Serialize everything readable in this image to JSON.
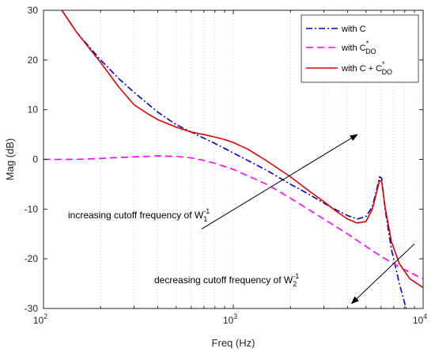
{
  "chart_data": {
    "type": "line",
    "title": "",
    "xlabel": "Freq (Hz)",
    "ylabel": "Mag (dB)",
    "xscale": "log",
    "xlim": [
      100,
      10000
    ],
    "ylim": [
      -30,
      30
    ],
    "yticks": [
      -30,
      -20,
      -10,
      0,
      10,
      20,
      30
    ],
    "xticks": [
      {
        "value": 100,
        "base": "10",
        "exp": "2"
      },
      {
        "value": 1000,
        "base": "10",
        "exp": "3"
      },
      {
        "value": 10000,
        "base": "10",
        "exp": "4"
      }
    ],
    "grid": "x-minor-dotted",
    "legend_position": "top-right",
    "series": [
      {
        "key": "C",
        "legend": {
          "main": "with C",
          "sup": "",
          "sub": ""
        },
        "color": "#0000CC",
        "dash": "8,3,2,3",
        "points": [
          [
            125,
            30
          ],
          [
            150,
            25.5
          ],
          [
            200,
            20
          ],
          [
            250,
            16.2
          ],
          [
            300,
            13.5
          ],
          [
            400,
            9.5
          ],
          [
            500,
            7
          ],
          [
            600,
            5.5
          ],
          [
            800,
            3.2
          ],
          [
            1000,
            1.3
          ],
          [
            1500,
            -2.2
          ],
          [
            2000,
            -5
          ],
          [
            2500,
            -7
          ],
          [
            3000,
            -8.8
          ],
          [
            3500,
            -10.2
          ],
          [
            4000,
            -11.3
          ],
          [
            4500,
            -12
          ],
          [
            5000,
            -11.5
          ],
          [
            5400,
            -9.5
          ],
          [
            5700,
            -6
          ],
          [
            5900,
            -3.5
          ],
          [
            6050,
            -3.8
          ],
          [
            6300,
            -10
          ],
          [
            6800,
            -18
          ],
          [
            7500,
            -25
          ],
          [
            8000,
            -29
          ],
          [
            8300,
            -31
          ]
        ]
      },
      {
        "key": "CDO",
        "legend": {
          "main": "with C",
          "sup": "*",
          "sub": "DO"
        },
        "color": "#FF00FF",
        "dash": "9,5",
        "points": [
          [
            100,
            0
          ],
          [
            150,
            0
          ],
          [
            200,
            0.2
          ],
          [
            300,
            0.5
          ],
          [
            400,
            0.7
          ],
          [
            500,
            0.6
          ],
          [
            600,
            0.3
          ],
          [
            700,
            -0.2
          ],
          [
            800,
            -0.8
          ],
          [
            1000,
            -2
          ],
          [
            1500,
            -5
          ],
          [
            2000,
            -7.8
          ],
          [
            3000,
            -12
          ],
          [
            4000,
            -15
          ],
          [
            5000,
            -17.5
          ],
          [
            6000,
            -19.5
          ],
          [
            7000,
            -21
          ],
          [
            8000,
            -22.2
          ],
          [
            9000,
            -23.2
          ],
          [
            10000,
            -24
          ]
        ]
      },
      {
        "key": "CCDO",
        "legend": {
          "main": "with C + C",
          "sup": "*",
          "sub": "DO"
        },
        "color": "#E00000",
        "dash": "",
        "points": [
          [
            125,
            30
          ],
          [
            150,
            25.5
          ],
          [
            200,
            19.5
          ],
          [
            250,
            14.5
          ],
          [
            300,
            11
          ],
          [
            350,
            9.3
          ],
          [
            400,
            8
          ],
          [
            500,
            6.5
          ],
          [
            600,
            5.5
          ],
          [
            700,
            5
          ],
          [
            800,
            4.5
          ],
          [
            900,
            4
          ],
          [
            1000,
            3.4
          ],
          [
            1200,
            2
          ],
          [
            1500,
            -0.3
          ],
          [
            2000,
            -3.5
          ],
          [
            2500,
            -6.3
          ],
          [
            3000,
            -8.5
          ],
          [
            3500,
            -10.5
          ],
          [
            4000,
            -12
          ],
          [
            4500,
            -12.8
          ],
          [
            5000,
            -12.5
          ],
          [
            5400,
            -10
          ],
          [
            5700,
            -6.5
          ],
          [
            5900,
            -4.2
          ],
          [
            6050,
            -4.5
          ],
          [
            6300,
            -9.5
          ],
          [
            6800,
            -16.5
          ],
          [
            7500,
            -21
          ],
          [
            8500,
            -24
          ],
          [
            10000,
            -25.8
          ]
        ]
      }
    ],
    "annotations": [
      {
        "key": "inc",
        "text": "increasing cutoff frequency of W",
        "sub": "1",
        "sup": "-1"
      },
      {
        "key": "dec",
        "text": "decreasing cutoff frequency of W",
        "sub": "2",
        "sup": "-1"
      }
    ]
  }
}
